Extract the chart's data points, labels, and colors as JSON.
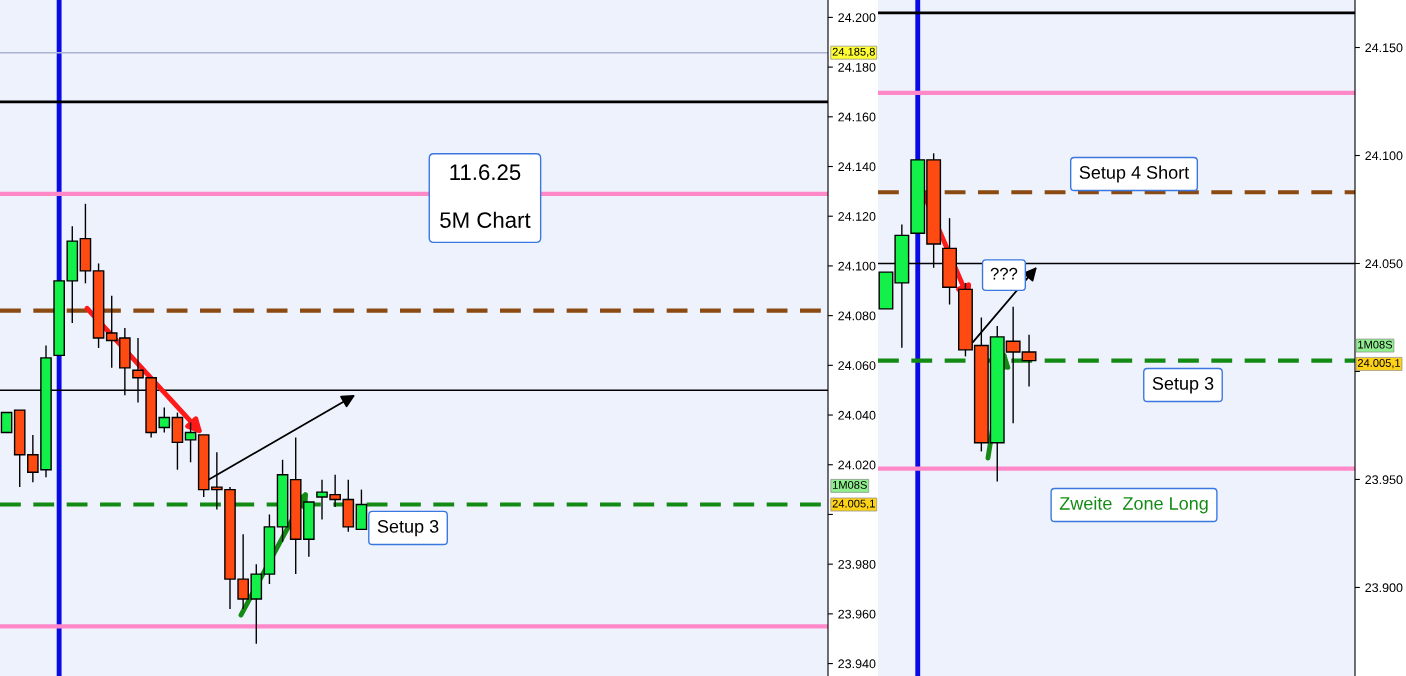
{
  "chart_data": [
    {
      "type": "candlestick",
      "categories": [
        null,
        null,
        null,
        null,
        null,
        null,
        null,
        null,
        null,
        null,
        null,
        null,
        null,
        null,
        null,
        null,
        null,
        null,
        null,
        null,
        null,
        null,
        null,
        null,
        null,
        null,
        null,
        null,
        null,
        null,
        null,
        null,
        null,
        null,
        null,
        null,
        null,
        null,
        null,
        null,
        null,
        null,
        null,
        null,
        null,
        null,
        null,
        null,
        null,
        null,
        null,
        null,
        null,
        null,
        null,
        null,
        null,
        null,
        null,
        null,
        null,
        null,
        null
      ],
      "ohlc": [
        [
          24033,
          24041,
          24033,
          24041
        ],
        [
          24042,
          24042,
          24011,
          24024
        ],
        [
          24024,
          24032,
          24013,
          24017
        ],
        [
          24018,
          24068,
          24015,
          24063
        ],
        [
          24064,
          24094,
          24064,
          24094
        ],
        [
          24094,
          24116,
          24077,
          24110
        ],
        [
          24111,
          24125,
          24093,
          24098
        ],
        [
          24098,
          24101,
          24067,
          24071
        ],
        [
          24073,
          24088,
          24059,
          24070
        ],
        [
          24071,
          24075,
          24048,
          24059
        ],
        [
          24058,
          24071,
          24045,
          24055
        ],
        [
          24055,
          24055,
          24031,
          24033
        ],
        [
          24035,
          24043,
          24033,
          24039
        ],
        [
          24039,
          24041,
          24018,
          24029
        ],
        [
          24030,
          24037,
          24021,
          24033
        ],
        [
          24032,
          24032,
          24007,
          24010
        ],
        [
          24011,
          24025,
          24002,
          24010
        ],
        [
          24010,
          24011,
          23962,
          23974
        ],
        [
          23974,
          23992,
          23962,
          23966
        ],
        [
          23966,
          23980,
          23948,
          23976
        ],
        [
          23976,
          24000,
          23972,
          23995
        ],
        [
          23995,
          24022,
          23989,
          24016
        ],
        [
          24014,
          24031,
          23976,
          23990
        ],
        [
          23990,
          24005,
          23983,
          24005
        ],
        [
          24007,
          24014,
          23998,
          24009
        ],
        [
          24008,
          24016,
          24003,
          24006
        ],
        [
          24006,
          24014,
          23993,
          23995
        ],
        [
          23994,
          24010,
          23994,
          24004
        ],
        null,
        null,
        null,
        null,
        null,
        null,
        null,
        null,
        null,
        null,
        null,
        null,
        null,
        null,
        null,
        null,
        null,
        null,
        null,
        null,
        null,
        null,
        null,
        null,
        null,
        null,
        null,
        null,
        null,
        null,
        null,
        null,
        null,
        null,
        null
      ],
      "colors": [
        "#14f04a",
        "#ff4a12",
        "#ff4a12",
        "#14f04a",
        "#14f04a",
        "#14f04a",
        "#ff4a12",
        "#ff4a12",
        "#ff4a12",
        "#ff4a12",
        "#ff4a12",
        "#ff4a12",
        "#14f04a",
        "#ff4a12",
        "#14f04a",
        "#ff4a12",
        "#ff4a12",
        "#ff4a12",
        "#ff4a12",
        "#14f04a",
        "#14f04a",
        "#14f04a",
        "#ff4a12",
        "#14f04a",
        "#14f04a",
        "#ff4a12",
        "#ff4a12",
        "#14f04a",
        null,
        null,
        null,
        null,
        null,
        null,
        null,
        null,
        null,
        null,
        null,
        null,
        null,
        null,
        null,
        null,
        null,
        null,
        null,
        null,
        null,
        null,
        null,
        null,
        null,
        null,
        null,
        null,
        null,
        null,
        null,
        null,
        null,
        null,
        null
      ],
      "ylim": [
        23935,
        24207
      ],
      "yticks": [
        {
          "value": 23940,
          "label": "23.940"
        },
        {
          "value": 23960,
          "label": "23.960"
        },
        {
          "value": 23980,
          "label": "23.980"
        },
        {
          "value": 24000,
          "label": null
        },
        {
          "value": 24020,
          "label": "24.020"
        },
        {
          "value": 24040,
          "label": "24.040"
        },
        {
          "value": 24060,
          "label": "24.060"
        },
        {
          "value": 24080,
          "label": "24.080"
        },
        {
          "value": 24100,
          "label": "24.100"
        },
        {
          "value": 24120,
          "label": "24.120"
        },
        {
          "value": 24140,
          "label": "24.140"
        },
        {
          "value": 24160,
          "label": "24.160"
        },
        {
          "value": 24180,
          "label": "24.180"
        },
        {
          "value": 24200,
          "label": "24.200"
        }
      ],
      "ref_lines": [
        {
          "axis": "y",
          "value": 24185.8,
          "color": "#a9b4d4",
          "line_style": "solid"
        },
        {
          "axis": "y",
          "value": 24166,
          "color": "#000000",
          "line_style": "solid"
        },
        {
          "axis": "y",
          "value": 24129,
          "color": "#ff88c8",
          "line_style": "solid"
        },
        {
          "axis": "y",
          "value": 24082,
          "color": "#8b4a12",
          "line_style": "dashed"
        },
        {
          "axis": "y",
          "value": 24050,
          "color": "#000000",
          "line_style": "solid"
        },
        {
          "axis": "y",
          "value": 24004,
          "color": "#138a13",
          "line_style": "dashed"
        },
        {
          "axis": "y",
          "value": 23955,
          "color": "#ff88c8",
          "line_style": "solid"
        }
      ],
      "annotations": [
        "11.6.25\n\n5M Chart",
        "Setup 3",
        "24.185,8",
        "1M08S",
        "24.005,1"
      ],
      "grid": false,
      "legend": false
    },
    {
      "type": "candlestick",
      "categories": [
        null,
        null,
        null,
        null,
        null,
        null,
        null,
        null,
        null,
        null,
        null,
        null,
        null,
        null,
        null,
        null,
        null,
        null,
        null,
        null,
        null,
        null,
        null,
        null,
        null,
        null,
        null,
        null,
        null,
        null
      ],
      "ohlc": [
        [
          24029,
          24046,
          24029,
          24046
        ],
        [
          24041,
          24068,
          24011,
          24063
        ],
        [
          24064,
          24098,
          24064,
          24098
        ],
        [
          24098,
          24101,
          24048,
          24059
        ],
        [
          24057,
          24071,
          24031,
          24039
        ],
        [
          24038,
          24041,
          24007,
          24010
        ],
        [
          24012,
          24025,
          23963,
          23967
        ],
        [
          23967,
          24021,
          23949,
          24016
        ],
        [
          24014,
          24030,
          23976,
          24009
        ],
        [
          24009,
          24017,
          23993,
          24005
        ],
        null,
        null,
        null,
        null,
        null,
        null,
        null,
        null,
        null,
        null,
        null,
        null,
        null,
        null,
        null,
        null,
        null,
        null,
        null,
        null
      ],
      "colors": [
        "#14f04a",
        "#14f04a",
        "#14f04a",
        "#ff4a12",
        "#ff4a12",
        "#ff4a12",
        "#ff4a12",
        "#14f04a",
        "#ff4a12",
        "#ff4a12",
        null,
        null,
        null,
        null,
        null,
        null,
        null,
        null,
        null,
        null,
        null,
        null,
        null,
        null,
        null,
        null,
        null,
        null,
        null,
        null
      ],
      "ylim": [
        23859,
        24172
      ],
      "yticks": [
        {
          "value": 23900,
          "label": "23.900"
        },
        {
          "value": 23950,
          "label": "23.950"
        },
        {
          "value": 24000,
          "label": null
        },
        {
          "value": 24050,
          "label": "24.050"
        },
        {
          "value": 24100,
          "label": "24.100"
        },
        {
          "value": 24150,
          "label": "24.150"
        }
      ],
      "ref_lines": [
        {
          "axis": "y",
          "value": 24166,
          "color": "#000000",
          "line_style": "solid"
        },
        {
          "axis": "y",
          "value": 24129,
          "color": "#ff88c8",
          "line_style": "solid"
        },
        {
          "axis": "y",
          "value": 24083,
          "color": "#8b4a12",
          "line_style": "dashed"
        },
        {
          "axis": "y",
          "value": 24050,
          "color": "#000000",
          "line_style": "solid"
        },
        {
          "axis": "y",
          "value": 24005,
          "color": "#138a13",
          "line_style": "dashed"
        },
        {
          "axis": "y",
          "value": 23955,
          "color": "#ff88c8",
          "line_style": "solid"
        }
      ],
      "annotations": [
        "Setup 4 Short",
        "???",
        "Setup 3",
        "Zweite  Zone Long",
        "1M08S",
        "24.005,1"
      ],
      "grid": false,
      "legend": false
    }
  ]
}
